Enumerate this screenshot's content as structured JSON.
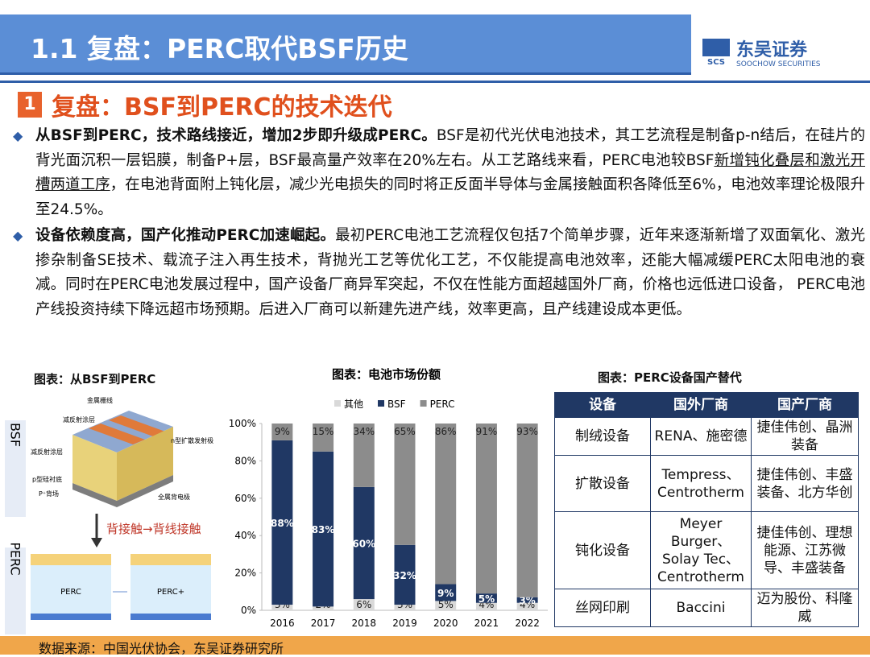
{
  "header": {
    "title": "1.1 复盘：PERC取代BSF历史",
    "logo_abbr": "SCS",
    "logo_cn": "东吴证券",
    "logo_en": "SOOCHOW SECURITIES"
  },
  "section": {
    "number": "1",
    "title": "复盘：BSF到PERC的技术迭代"
  },
  "bullets": [
    [
      {
        "style": "bold",
        "text": "从BSF到PERC，技术路线接近，增加2步即升级成PERC。"
      },
      {
        "style": "plain",
        "text": "BSF是初代光伏电池技术，其工艺流程是制备p-n结后，在硅片的背光面沉积一层铝膜，制备P+层，BSF最高量产效率在20%左右。从工艺路线来看，PERC电池较BSF"
      },
      {
        "style": "underline",
        "text": "新增钝化叠层和激光开槽两道工序"
      },
      {
        "style": "plain",
        "text": "，在电池背面附上钝化层，减少光电损失的同时将正反面半导体与金属接触面积各降低至6%，电池效率理论极限升至24.5%。"
      }
    ],
    [
      {
        "style": "bold",
        "text": "设备依赖度高，国产化推动PERC加速崛起。"
      },
      {
        "style": "plain",
        "text": "最初PERC电池工艺流程仅包括7个简单步骤，近年来逐渐新增了双面氧化、激光掺杂制备SE技术、载流子注入再生技术，背抛光工艺等优化工艺，不仅能提高电池效率，还能大幅减缓PERC太阳电池的衰减。同时在PERC电池发展过程中，国产设备厂商异军突起，不仅在性能方面超越国外厂商，价格也远低进口设备， PERC电池产线投资持续下降远超市场预期。后进入厂商可以新建先进产线，效率更高，且产线建设成本更低。"
      }
    ]
  ],
  "diagram": {
    "title": "图表：从BSF到PERC",
    "side_top": "BSF",
    "side_bottom": "PERC",
    "labels": [
      "金属栅线",
      "减反射涂层",
      "减反射涂层",
      "n型扩散发射极",
      "p型硅衬底",
      "P⁺背场",
      "全属背电极"
    ],
    "arrow": "背接触→背线接触",
    "cell_left": "PERC",
    "cell_right": "PERC+"
  },
  "chart_data": {
    "type": "stacked_bar",
    "title": "图表：电池市场份额",
    "categories": [
      "2016",
      "2017",
      "2018",
      "2019",
      "2020",
      "2021",
      "2022"
    ],
    "series": [
      {
        "name": "其他",
        "color": "#d9d9d9",
        "values": [
          3,
          2,
          6,
          3,
          5,
          4,
          4
        ],
        "value_labels": [
          "3%",
          "2%",
          "6%",
          "3%",
          "5%",
          "4%",
          "4%"
        ]
      },
      {
        "name": "BSF",
        "color": "#203864",
        "values": [
          88,
          83,
          60,
          32,
          9,
          5,
          3
        ],
        "value_labels": [
          "88%",
          "83%",
          "60%",
          "32%",
          "9%",
          "5%",
          "3%"
        ]
      },
      {
        "name": "PERC",
        "color": "#8c8c8c",
        "values": [
          9,
          15,
          34,
          65,
          86,
          91,
          93
        ],
        "value_labels": [
          "9%",
          "15%",
          "34%",
          "65%",
          "86%",
          "91%",
          "93%"
        ]
      }
    ],
    "ylim": [
      0,
      100
    ],
    "yticks": [
      {
        "value": 0,
        "label": "0%"
      },
      {
        "value": 20,
        "label": "20%"
      },
      {
        "value": 40,
        "label": "40%"
      },
      {
        "value": 60,
        "label": "60%"
      },
      {
        "value": 80,
        "label": "80%"
      },
      {
        "value": 100,
        "label": "100%"
      }
    ],
    "legend": "top"
  },
  "table": {
    "title": "图表：PERC设备国产替代",
    "header": [
      "设备",
      "国外厂商",
      "国产厂商"
    ],
    "rows": [
      [
        "制绒设备",
        "RENA、施密德",
        "捷佳伟创、晶洲装备"
      ],
      [
        "扩散设备",
        "Tempress、Centrotherm",
        "捷佳伟创、丰盛装备、北方华创"
      ],
      [
        "钝化设备",
        "Meyer Burger、Solay Tec、Centrotherm",
        "捷佳伟创、理想能源、江苏微导、丰盛装备"
      ],
      [
        "丝网印刷",
        "Baccini",
        "迈为股份、科隆威"
      ]
    ]
  },
  "footer": {
    "source": "数据来源：中国光伏协会，东吴证券研究所"
  }
}
